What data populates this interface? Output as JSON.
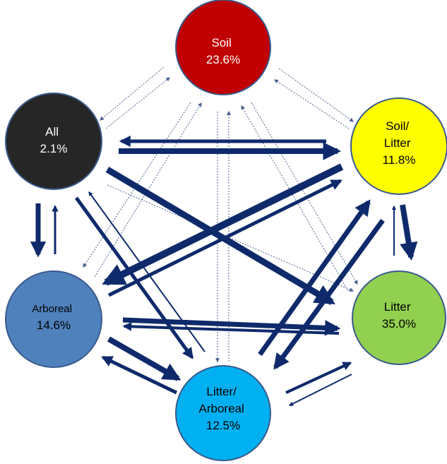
{
  "colors": {
    "arrow": "#0f2a6b",
    "node_border": "#3a5a8c"
  },
  "nodes": {
    "soil": {
      "line1": "Soil",
      "line2": "",
      "value": "23.6%",
      "fill": "#c00000",
      "text_color": "#ffffff"
    },
    "all": {
      "line1": "All",
      "line2": "",
      "value": "2.1%",
      "fill": "#262626",
      "text_color": "#ffffff"
    },
    "soil_litter": {
      "line1": "Soil/",
      "line2": "Litter",
      "value": "11.8%",
      "fill": "#ffff00",
      "text_color": "#000000"
    },
    "arboreal": {
      "line1": "Arboreal",
      "line2": "",
      "value": "14.6%",
      "fill": "#4f81bd",
      "text_color": "#000000"
    },
    "litter": {
      "line1": "Litter",
      "line2": "",
      "value": "35.0%",
      "fill": "#92d050",
      "text_color": "#000000"
    },
    "litter_arboreal": {
      "line1": "Litter/",
      "line2": "Arboreal",
      "value": "12.5%",
      "fill": "#00b0f0",
      "text_color": "#000000"
    }
  }
}
